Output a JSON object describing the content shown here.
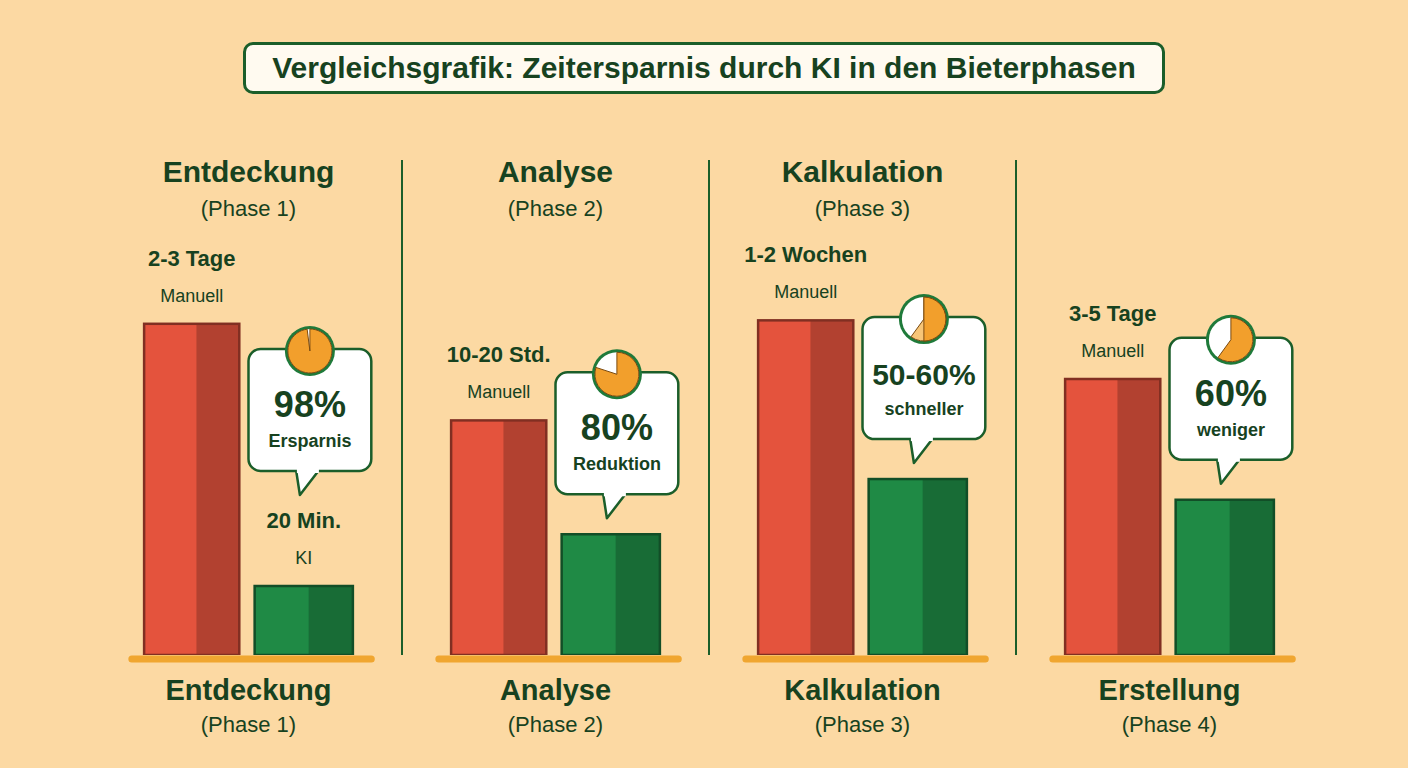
{
  "chart_data": {
    "type": "bar",
    "title": "Vergleichsgrafik: Zeitersparnis durch KI in den Bieterphasen",
    "categories": [
      "Entdeckung",
      "Analyse",
      "Kalkulation",
      "Erstellung"
    ],
    "headers": [
      "Entdeckung",
      "Analyse",
      "Kalkulation",
      null
    ],
    "phases": [
      "(Phase 1)",
      "(Phase 2)",
      "(Phase 3)",
      "(Phase 4)"
    ],
    "series": [
      {
        "name": "Manuell",
        "color": "#e4533d",
        "values": [
          96,
          68,
          97,
          80
        ],
        "time_labels": [
          "2-3 Tage",
          "10-20 Std.",
          "1-2 Wochen",
          "3-5 Tage"
        ]
      },
      {
        "name": "KI",
        "color": "#1f8a45",
        "values": [
          20,
          35,
          51,
          45
        ],
        "time_labels": [
          "20 Min.",
          null,
          null,
          null
        ]
      }
    ],
    "savings": [
      {
        "value": 98,
        "label": "98%",
        "text": "Ersparnis"
      },
      {
        "value": 80,
        "label": "80%",
        "text": "Reduktion"
      },
      {
        "value": [
          50,
          60
        ],
        "label": "50-60%",
        "text": "schneller"
      },
      {
        "value": 60,
        "label": "60%",
        "text": "weniger"
      }
    ],
    "ylim": [
      0,
      100
    ],
    "tick_labels": false
  }
}
